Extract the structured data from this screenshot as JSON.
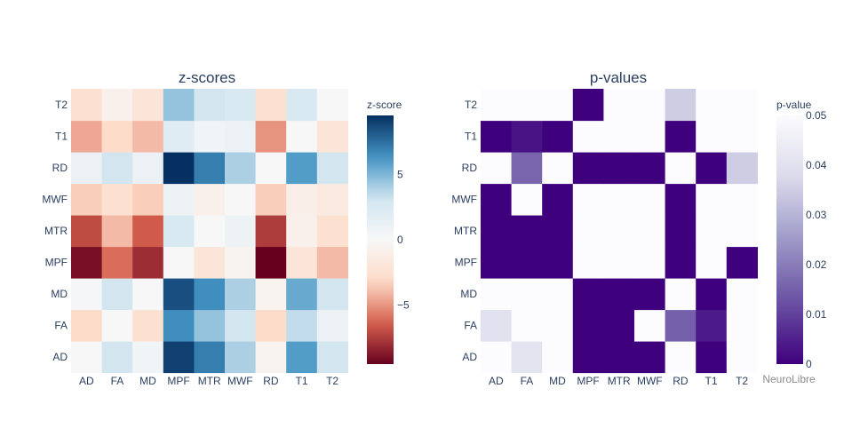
{
  "chart_data": [
    {
      "type": "heatmap",
      "title": "z-scores",
      "x_categories": [
        "AD",
        "FA",
        "MD",
        "MPF",
        "MTR",
        "MWF",
        "RD",
        "T1",
        "T2"
      ],
      "y_categories": [
        "AD",
        "FA",
        "MD",
        "MPF",
        "MTR",
        "MWF",
        "RD",
        "T1",
        "T2"
      ],
      "z_rows_bottom_to_top": [
        [
          0,
          3,
          0.5,
          9,
          7,
          4,
          -0.5,
          6,
          3
        ],
        [
          -3,
          0,
          -2.5,
          6.5,
          4.5,
          3,
          -3,
          3.5,
          1
        ],
        [
          0.2,
          3,
          0,
          8.5,
          6.5,
          4,
          -0.5,
          5.5,
          3
        ],
        [
          -9,
          -6,
          -8,
          0,
          -2,
          -0.5,
          -9.5,
          -2,
          -4
        ],
        [
          -7,
          -4,
          -6.5,
          2.5,
          0,
          0.8,
          -7.5,
          -0.8,
          -2.5
        ],
        [
          -3.5,
          -2.5,
          -3.5,
          0.8,
          -0.8,
          0,
          -3.5,
          -1,
          -1.5
        ],
        [
          1,
          3,
          1,
          9.5,
          7,
          4,
          0,
          6,
          3
        ],
        [
          -4.5,
          -3,
          -4,
          2,
          0.6,
          1,
          -5,
          0,
          -2
        ],
        [
          -2.5,
          -0.8,
          -2,
          4.5,
          3,
          2.5,
          -2.5,
          2.5,
          0
        ]
      ],
      "colorbar": {
        "title": "z-score",
        "ticks": [
          5,
          0,
          -5
        ],
        "tick_labels": [
          "5",
          "0",
          "−5"
        ],
        "range": [
          -9.5,
          9.5
        ]
      },
      "colorscale": "RdBu",
      "colorscale_stops": [
        "#67001f",
        "#d6604d",
        "#fddbc7",
        "#f7f7f7",
        "#d1e5f0",
        "#4393c3",
        "#053061"
      ]
    },
    {
      "type": "heatmap",
      "title": "p-values",
      "x_categories": [
        "AD",
        "FA",
        "MD",
        "MPF",
        "MTR",
        "MWF",
        "RD",
        "T1",
        "T2"
      ],
      "y_categories": [
        "AD",
        "FA",
        "MD",
        "MPF",
        "MTR",
        "MWF",
        "RD",
        "T1",
        "T2"
      ],
      "z_rows_bottom_to_top": [
        [
          0.05,
          0.041,
          0.05,
          0.0,
          0.0,
          0.0,
          0.05,
          0.0,
          0.05
        ],
        [
          0.04,
          0.05,
          0.05,
          0.0,
          0.0,
          0.05,
          0.015,
          0.004,
          0.05
        ],
        [
          0.05,
          0.05,
          0.05,
          0.0,
          0.0,
          0.0,
          0.05,
          0.0,
          0.05
        ],
        [
          0.0,
          0.0,
          0.0,
          0.05,
          0.05,
          0.05,
          0.0,
          0.05,
          0.0
        ],
        [
          0.0,
          0.0,
          0.0,
          0.05,
          0.05,
          0.05,
          0.0,
          0.05,
          0.05
        ],
        [
          0.0,
          0.05,
          0.0,
          0.05,
          0.05,
          0.05,
          0.0,
          0.05,
          0.05
        ],
        [
          0.05,
          0.016,
          0.05,
          0.0,
          0.0,
          0.0,
          0.05,
          0.0,
          0.035
        ],
        [
          0.0,
          0.003,
          0.0,
          0.05,
          0.05,
          0.05,
          0.0,
          0.05,
          0.05
        ],
        [
          0.05,
          0.05,
          0.05,
          0.0,
          0.05,
          0.05,
          0.035,
          0.05,
          0.05
        ]
      ],
      "colorbar": {
        "title": "p-value",
        "ticks": [
          0.05,
          0.04,
          0.03,
          0.02,
          0.01,
          0
        ],
        "tick_labels": [
          "0.05",
          "0.04",
          "0.03",
          "0.02",
          "0.01",
          "0"
        ],
        "range": [
          0,
          0.05
        ]
      },
      "colorscale": "Purples",
      "colorscale_stops": [
        "#3f007d",
        "#6a51a3",
        "#9e9ac8",
        "#dadaeb",
        "#fcfbfd"
      ]
    }
  ],
  "watermark": "NeuroLibre"
}
